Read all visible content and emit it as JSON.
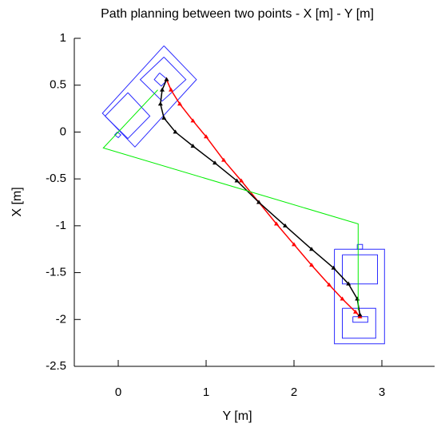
{
  "chart_data": {
    "type": "line",
    "title": "Path planning between two points - X [m] - Y [m]",
    "x_label": "Y [m]",
    "y_label": "X [m]",
    "xlim": [
      -0.5,
      3.6
    ],
    "ylim": [
      -2.5,
      1
    ],
    "xticks": [
      0,
      1,
      2,
      3
    ],
    "yticks": [
      1,
      0.5,
      0,
      -0.5,
      -1,
      -1.5,
      -2,
      -2.5
    ],
    "series": [
      {
        "color": "#ff0000",
        "marker": true,
        "x": [
          0.55,
          0.6,
          0.7,
          0.85,
          1.0,
          1.2,
          1.4,
          1.6,
          1.8,
          2.0,
          2.2,
          2.4,
          2.55,
          2.7,
          2.75
        ],
        "y": [
          0.56,
          0.45,
          0.3,
          0.12,
          -0.05,
          -0.3,
          -0.52,
          -0.75,
          -0.98,
          -1.2,
          -1.42,
          -1.63,
          -1.78,
          -1.92,
          -1.97
        ]
      },
      {
        "color": "#000000",
        "marker": true,
        "x": [
          0.55,
          0.5,
          0.48,
          0.52,
          0.65,
          0.85,
          1.1,
          1.35,
          1.6,
          1.9,
          2.2,
          2.45,
          2.62,
          2.72,
          2.75
        ],
        "y": [
          0.56,
          0.45,
          0.3,
          0.15,
          0.0,
          -0.15,
          -0.33,
          -0.52,
          -0.75,
          -1.0,
          -1.25,
          -1.45,
          -1.62,
          -1.78,
          -1.95
        ]
      },
      {
        "color": "#00ee00",
        "marker": false,
        "x": [
          0.45,
          -0.17,
          2.73,
          2.73
        ],
        "y": [
          0.45,
          -0.17,
          -0.98,
          -1.9
        ]
      }
    ],
    "shapes": [
      {
        "color": "#2a2aff",
        "x": [
          0.52,
          0.89,
          0.19,
          -0.18,
          0.52
        ],
        "y": [
          0.92,
          0.56,
          -0.16,
          0.2,
          0.92
        ]
      },
      {
        "color": "#2a2aff",
        "x": [
          0.52,
          0.77,
          0.5,
          0.25,
          0.52
        ],
        "y": [
          0.8,
          0.56,
          0.33,
          0.56,
          0.8
        ]
      },
      {
        "color": "#2a2aff",
        "x": [
          0.11,
          0.36,
          0.11,
          -0.15,
          0.11
        ],
        "y": [
          0.42,
          0.17,
          -0.07,
          0.17,
          0.42
        ]
      },
      {
        "color": "#2a2aff",
        "x": [
          0.47,
          0.56,
          0.49,
          0.41,
          0.47
        ],
        "y": [
          0.63,
          0.56,
          0.49,
          0.56,
          0.63
        ]
      },
      {
        "color": "#2a2aff",
        "x": [
          -0.01,
          0.03,
          0.0,
          -0.04,
          -0.01
        ],
        "y": [
          0.0,
          -0.03,
          -0.06,
          -0.03,
          0.0
        ]
      },
      {
        "color": "#2a2aff",
        "x": [
          2.46,
          3.03,
          3.03,
          2.46,
          2.46
        ],
        "y": [
          -1.25,
          -1.25,
          -2.26,
          -2.26,
          -1.25
        ]
      },
      {
        "color": "#2a2aff",
        "x": [
          2.55,
          2.95,
          2.95,
          2.55,
          2.55
        ],
        "y": [
          -1.31,
          -1.31,
          -1.62,
          -1.62,
          -1.31
        ]
      },
      {
        "color": "#2a2aff",
        "x": [
          2.55,
          2.93,
          2.93,
          2.55,
          2.55
        ],
        "y": [
          -1.88,
          -1.88,
          -2.2,
          -2.2,
          -1.88
        ]
      },
      {
        "color": "#2a2aff",
        "x": [
          2.67,
          2.84,
          2.84,
          2.67,
          2.67
        ],
        "y": [
          -1.97,
          -1.97,
          -2.03,
          -2.03,
          -1.97
        ]
      },
      {
        "color": "#2a2aff",
        "x": [
          2.72,
          2.78,
          2.78,
          2.72,
          2.72
        ],
        "y": [
          -1.2,
          -1.2,
          -1.25,
          -1.25,
          -1.2
        ]
      }
    ]
  }
}
